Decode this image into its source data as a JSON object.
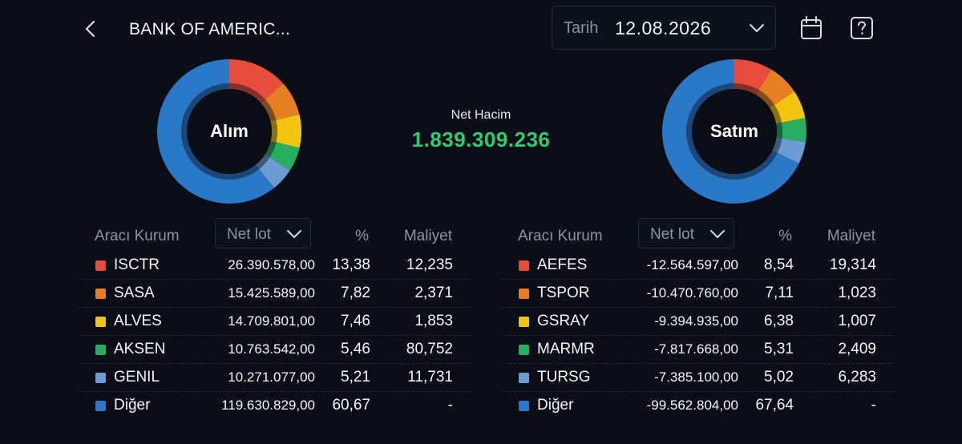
{
  "header": {
    "title": "BANK OF AMERIC...",
    "date_label": "Tarih",
    "date_value": "12.08.2026"
  },
  "net_volume": {
    "label": "Net Hacim",
    "value": "1.839.309.236",
    "color": "#2ecc71"
  },
  "colors": {
    "red": "#e74c3c",
    "orange": "#e67e22",
    "yellow": "#f1c40f",
    "green": "#27ae60",
    "lightblue": "#6b9bd2",
    "blue": "#2a78c8"
  },
  "buy": {
    "chart_label": "Alım",
    "headers": {
      "broker": "Aracı Kurum",
      "lot": "Net lot",
      "pct": "%",
      "cost": "Maliyet"
    },
    "rows": [
      {
        "name": "ISCTR",
        "lot": "26.390.578,00",
        "pct": "13,38",
        "cost": "12,235",
        "color": "red"
      },
      {
        "name": "SASA",
        "lot": "15.425.589,00",
        "pct": "7,82",
        "cost": "2,371",
        "color": "orange"
      },
      {
        "name": "ALVES",
        "lot": "14.709.801,00",
        "pct": "7,46",
        "cost": "1,853",
        "color": "yellow"
      },
      {
        "name": "AKSEN",
        "lot": "10.763.542,00",
        "pct": "5,46",
        "cost": "80,752",
        "color": "green"
      },
      {
        "name": "GENIL",
        "lot": "10.271.077,00",
        "pct": "5,21",
        "cost": "11,731",
        "color": "lightblue"
      },
      {
        "name": "Diğer",
        "lot": "119.630.829,00",
        "pct": "60,67",
        "cost": "-",
        "color": "blue"
      }
    ]
  },
  "sell": {
    "chart_label": "Satım",
    "headers": {
      "broker": "Aracı Kurum",
      "lot": "Net lot",
      "pct": "%",
      "cost": "Maliyet"
    },
    "rows": [
      {
        "name": "AEFES",
        "lot": "-12.564.597,00",
        "pct": "8,54",
        "cost": "19,314",
        "color": "red"
      },
      {
        "name": "TSPOR",
        "lot": "-10.470.760,00",
        "pct": "7,11",
        "cost": "1,023",
        "color": "orange"
      },
      {
        "name": "GSRAY",
        "lot": "-9.394.935,00",
        "pct": "6,38",
        "cost": "1,007",
        "color": "yellow"
      },
      {
        "name": "MARMR",
        "lot": "-7.817.668,00",
        "pct": "5,31",
        "cost": "2,409",
        "color": "green"
      },
      {
        "name": "TURSG",
        "lot": "-7.385.100,00",
        "pct": "5,02",
        "cost": "6,283",
        "color": "lightblue"
      },
      {
        "name": "Diğer",
        "lot": "-99.562.804,00",
        "pct": "67,64",
        "cost": "-",
        "color": "blue"
      }
    ]
  },
  "chart_data": [
    {
      "type": "pie",
      "title": "Alım",
      "categories": [
        "ISCTR",
        "SASA",
        "ALVES",
        "AKSEN",
        "GENIL",
        "Diğer"
      ],
      "values": [
        13.38,
        7.82,
        7.46,
        5.46,
        5.21,
        60.67
      ]
    },
    {
      "type": "pie",
      "title": "Satım",
      "categories": [
        "AEFES",
        "TSPOR",
        "GSRAY",
        "MARMR",
        "TURSG",
        "Diğer"
      ],
      "values": [
        8.54,
        7.11,
        6.38,
        5.31,
        5.02,
        67.64
      ]
    }
  ]
}
